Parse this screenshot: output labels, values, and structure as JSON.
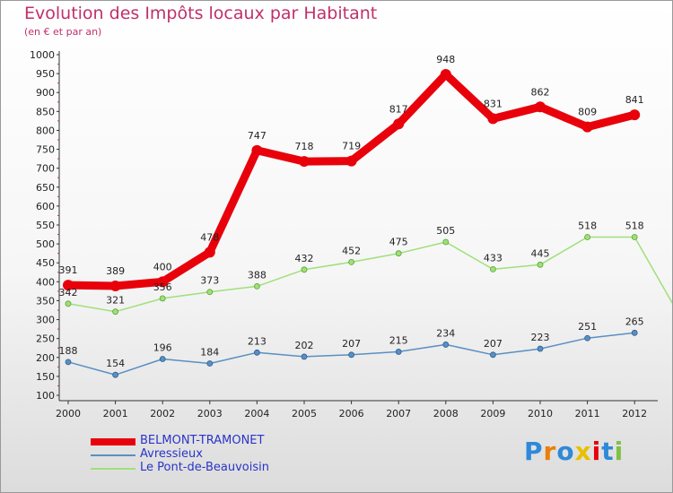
{
  "chart_data": {
    "type": "line",
    "title": "Evolution des Impôts locaux par Habitant",
    "subtitle": "(en € et par an)",
    "categories": [
      "2000",
      "2001",
      "2002",
      "2003",
      "2004",
      "2005",
      "2006",
      "2007",
      "2008",
      "2009",
      "2010",
      "2011",
      "2012"
    ],
    "ylim": [
      100,
      1000
    ],
    "yticks": [
      100,
      150,
      200,
      250,
      300,
      350,
      400,
      450,
      500,
      550,
      600,
      650,
      700,
      750,
      800,
      850,
      900,
      950,
      1000
    ],
    "grid": false,
    "legend_position": "bottom-left",
    "series": [
      {
        "name": "BELMONT-TRAMONET",
        "color": "#e8000b",
        "values": [
          391,
          389,
          400,
          478,
          747,
          718,
          719,
          817,
          948,
          831,
          862,
          809,
          841
        ],
        "labels": [
          "391",
          "389",
          "400",
          "478",
          "747",
          "718",
          "719",
          "817",
          "948",
          "831",
          "862",
          "809",
          "841"
        ]
      },
      {
        "name": "Avressieux",
        "color": "#5a8fc2",
        "values": [
          188,
          154,
          196,
          184,
          213,
          202,
          207,
          215,
          234,
          207,
          223,
          251,
          265
        ],
        "labels": [
          "188",
          "154",
          "196",
          "184",
          "213",
          "202",
          "207",
          "215",
          "234",
          "207",
          "223",
          "251",
          "265"
        ]
      },
      {
        "name": "Le Pont-de-Beauvoisin",
        "color": "#9fe07a",
        "values": [
          342,
          321,
          356,
          373,
          388,
          432,
          452,
          475,
          505,
          433,
          445,
          518,
          518
        ],
        "labels": [
          "342",
          "321",
          "356",
          "373",
          "388",
          "432",
          "452",
          "475",
          "505",
          "433",
          "445",
          "518",
          "518"
        ]
      }
    ]
  },
  "branding": {
    "logo_text": "Proxiti",
    "letter_colors": [
      "#2e8ad8",
      "#e8800a",
      "#2e8ad8",
      "#e8c000",
      "#e8000b",
      "#2e8ad8",
      "#7dc242"
    ]
  }
}
